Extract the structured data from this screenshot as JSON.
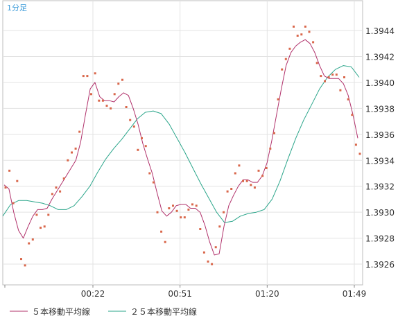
{
  "chart_data": {
    "type": "line",
    "title": "1分足",
    "xlabel": "",
    "ylabel": "",
    "x_ticks": [
      "00:22",
      "00:51",
      "01:20",
      "01:49"
    ],
    "y_ticks": [
      "1.3926",
      "1.3928",
      "1.3930",
      "1.3932",
      "1.3934",
      "1.3936",
      "1.3938",
      "1.3940",
      "1.3942",
      "1.3944"
    ],
    "ylim": [
      1.39244,
      1.39463
    ],
    "grid": true,
    "legend_position": "bottom-left",
    "series": [
      {
        "name": "５本移動平均線",
        "color": "#b0306a",
        "values": [
          1.39321,
          1.39318,
          1.393,
          1.39286,
          1.3928,
          1.39289,
          1.39297,
          1.39302,
          1.39302,
          1.39303,
          1.3931,
          1.39316,
          1.39322,
          1.39328,
          1.39334,
          1.3934,
          1.39354,
          1.39375,
          1.39395,
          1.394,
          1.39389,
          1.39386,
          1.39386,
          1.39385,
          1.39389,
          1.39392,
          1.3939,
          1.3938,
          1.39368,
          1.39353,
          1.39341,
          1.3933,
          1.39315,
          1.39301,
          1.39297,
          1.393,
          1.39305,
          1.39306,
          1.39306,
          1.39303,
          1.39303,
          1.393,
          1.3929,
          1.39277,
          1.39267,
          1.39268,
          1.39289,
          1.39305,
          1.39313,
          1.3932,
          1.39325,
          1.39325,
          1.39323,
          1.39323,
          1.39328,
          1.39338,
          1.39355,
          1.39375,
          1.39395,
          1.39413,
          1.39423,
          1.39428,
          1.39431,
          1.39433,
          1.3943,
          1.39423,
          1.39413,
          1.39405,
          1.39403,
          1.39403,
          1.39403,
          1.39399,
          1.3939,
          1.39375,
          1.39357
        ]
      },
      {
        "name": "２５本移動平均線",
        "color": "#2aa58a",
        "values": [
          1.39297,
          1.39306,
          1.39309,
          1.39309,
          1.39308,
          1.39307,
          1.39305,
          1.39302,
          1.39302,
          1.39305,
          1.39312,
          1.3932,
          1.39331,
          1.39341,
          1.39349,
          1.39356,
          1.39364,
          1.39372,
          1.39377,
          1.39378,
          1.39376,
          1.39368,
          1.39357,
          1.39346,
          1.39334,
          1.39322,
          1.39311,
          1.393,
          1.39292,
          1.39293,
          1.39297,
          1.39299,
          1.393,
          1.39302,
          1.3931,
          1.39324,
          1.39341,
          1.39357,
          1.39371,
          1.39383,
          1.39395,
          1.39404,
          1.3941,
          1.39413,
          1.39412,
          1.39404
        ]
      }
    ],
    "scatter_points": [
      1.39319,
      1.39332,
      1.39307,
      1.39324,
      1.39264,
      1.39259,
      1.39276,
      1.39279,
      1.39298,
      1.39288,
      1.39289,
      1.39298,
      1.39314,
      1.39319,
      1.39316,
      1.39326,
      1.3934,
      1.39346,
      1.39349,
      1.39362,
      1.39405,
      1.39405,
      1.39391,
      1.39407,
      1.39386,
      1.39386,
      1.39382,
      1.3938,
      1.39391,
      1.39399,
      1.39402,
      1.39381,
      1.39371,
      1.39366,
      1.39348,
      1.39357,
      1.39351,
      1.3933,
      1.39323,
      1.393,
      1.39285,
      1.39277,
      1.39303,
      1.39305,
      1.39301,
      1.39296,
      1.39296,
      1.39302,
      1.39306,
      1.39305,
      1.39287,
      1.39269,
      1.39262,
      1.3926,
      1.39273,
      1.39289,
      1.393,
      1.39316,
      1.39318,
      1.3933,
      1.39336,
      1.39324,
      1.39324,
      1.39321,
      1.39319,
      1.39332,
      1.39328,
      1.39334,
      1.39349,
      1.39361,
      1.39387,
      1.3941,
      1.39418,
      1.39426,
      1.39443,
      1.39436,
      1.39437,
      1.39443,
      1.39439,
      1.39431,
      1.39415,
      1.39405,
      1.39401,
      1.39404,
      1.39406,
      1.39406,
      1.39394,
      1.39404,
      1.39387,
      1.39375,
      1.39352,
      1.39345
    ]
  }
}
